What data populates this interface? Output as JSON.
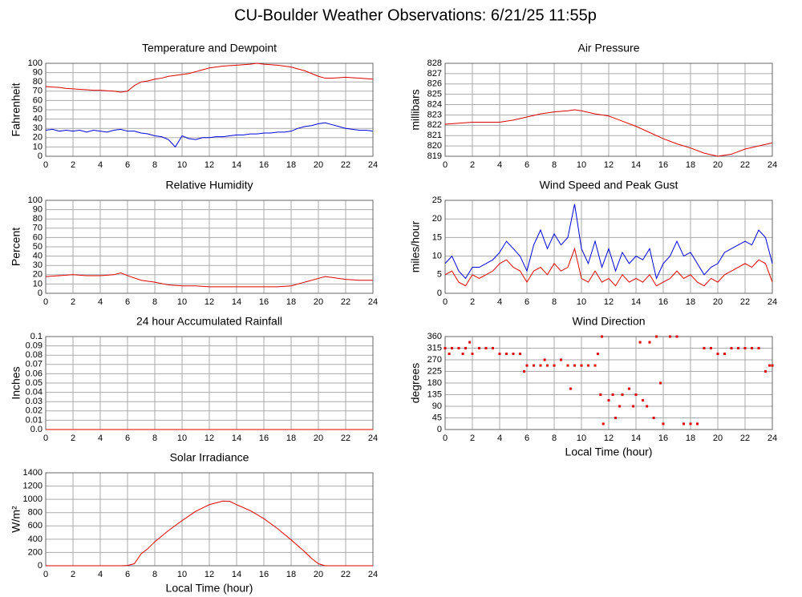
{
  "title": "CU-Boulder Weather Observations: 6/21/25 11:55p",
  "chart_data": [
    {
      "type": "line",
      "title": "Temperature and Dewpoint",
      "ylabel": "Fahrenheit",
      "xlim": [
        0,
        24
      ],
      "ylim": [
        0,
        100
      ],
      "xticks": [
        0,
        2,
        4,
        6,
        8,
        10,
        12,
        14,
        16,
        18,
        20,
        22,
        24
      ],
      "yticks": [
        0,
        10,
        20,
        30,
        40,
        50,
        60,
        70,
        80,
        90,
        100
      ],
      "grid": true,
      "x": [
        0,
        0.5,
        1,
        1.5,
        2,
        2.5,
        3,
        3.5,
        4,
        4.5,
        5,
        5.5,
        6,
        6.5,
        7,
        7.5,
        8,
        8.5,
        9,
        9.5,
        10,
        10.5,
        11,
        11.5,
        12,
        12.5,
        13,
        13.5,
        14,
        14.5,
        15,
        15.5,
        16,
        16.5,
        17,
        17.5,
        18,
        18.5,
        19,
        19.5,
        20,
        20.5,
        21,
        21.5,
        22,
        22.5,
        23,
        23.5,
        24
      ],
      "series": [
        {
          "color": "#e00000",
          "values": [
            75,
            74.5,
            74,
            73,
            72.5,
            72,
            71.5,
            71,
            71,
            70.5,
            70,
            69,
            70,
            76,
            80,
            81,
            83,
            84,
            86,
            87,
            88,
            89,
            91,
            93,
            95,
            96,
            97,
            97.5,
            98,
            98.5,
            99,
            100,
            99,
            98.5,
            98,
            97,
            96,
            94,
            92,
            89,
            86,
            84,
            84,
            84.5,
            85,
            84.5,
            84,
            83.5,
            83
          ]
        },
        {
          "color": "#0000e0",
          "values": [
            28,
            29,
            27,
            28,
            27,
            28,
            26,
            28,
            27,
            26,
            28,
            29,
            27,
            27,
            25,
            24,
            22,
            21,
            18,
            10,
            22,
            19,
            18,
            20,
            20,
            21,
            21,
            22,
            23,
            23,
            24,
            24,
            25,
            25,
            26,
            26,
            27,
            30,
            32,
            33,
            35,
            36,
            34,
            32,
            30,
            29,
            28,
            28,
            27
          ]
        }
      ]
    },
    {
      "type": "line",
      "title": "Air Pressure",
      "ylabel": "millibars",
      "xlim": [
        0,
        24
      ],
      "ylim": [
        819,
        828
      ],
      "xticks": [
        0,
        2,
        4,
        6,
        8,
        10,
        12,
        14,
        16,
        18,
        20,
        22,
        24
      ],
      "yticks": [
        819,
        820,
        821,
        822,
        823,
        824,
        825,
        826,
        827,
        828
      ],
      "grid": true,
      "x": [
        0,
        1,
        2,
        3,
        4,
        5,
        6,
        7,
        8,
        9,
        9.5,
        10,
        11,
        12,
        13,
        14,
        15,
        16,
        17,
        18,
        19,
        20,
        21,
        22,
        23,
        24
      ],
      "series": [
        {
          "color": "#e00000",
          "values": [
            822.1,
            822.2,
            822.3,
            822.3,
            822.3,
            822.5,
            822.8,
            823.1,
            823.3,
            823.4,
            823.5,
            823.4,
            823.1,
            822.9,
            822.4,
            821.9,
            821.3,
            820.7,
            820.2,
            819.8,
            819.3,
            819,
            819.2,
            819.7,
            820,
            820.3
          ]
        }
      ]
    },
    {
      "type": "line",
      "title": "Relative Humidity",
      "ylabel": "Percent",
      "xlim": [
        0,
        24
      ],
      "ylim": [
        0,
        100
      ],
      "xticks": [
        0,
        2,
        4,
        6,
        8,
        10,
        12,
        14,
        16,
        18,
        20,
        22,
        24
      ],
      "yticks": [
        0,
        10,
        20,
        30,
        40,
        50,
        60,
        70,
        80,
        90,
        100
      ],
      "grid": true,
      "x": [
        0,
        1,
        2,
        3,
        4,
        5,
        5.5,
        6,
        7,
        8,
        9,
        10,
        11,
        12,
        13,
        14,
        15,
        16,
        17,
        18,
        19,
        20,
        20.5,
        21,
        22,
        23,
        24
      ],
      "series": [
        {
          "color": "#e00000",
          "values": [
            18,
            19,
            20,
            19,
            19,
            20,
            22,
            19,
            14,
            12,
            9,
            8,
            8,
            7,
            7,
            7,
            7,
            7,
            7,
            8,
            12,
            16,
            18,
            17,
            15,
            14,
            14
          ]
        }
      ]
    },
    {
      "type": "line",
      "title": "Wind Speed and Peak Gust",
      "ylabel": "miles/hour",
      "xlim": [
        0,
        24
      ],
      "ylim": [
        0,
        25
      ],
      "xticks": [
        0,
        2,
        4,
        6,
        8,
        10,
        12,
        14,
        16,
        18,
        20,
        22,
        24
      ],
      "yticks": [
        0,
        5,
        10,
        15,
        20,
        25
      ],
      "grid": true,
      "x": [
        0,
        0.5,
        1,
        1.5,
        2,
        2.5,
        3,
        3.5,
        4,
        4.5,
        5,
        5.5,
        6,
        6.5,
        7,
        7.5,
        8,
        8.5,
        9,
        9.5,
        10,
        10.5,
        11,
        11.5,
        12,
        12.5,
        13,
        13.5,
        14,
        14.5,
        15,
        15.5,
        16,
        16.5,
        17,
        17.5,
        18,
        18.5,
        19,
        19.5,
        20,
        20.5,
        21,
        21.5,
        22,
        22.5,
        23,
        23.5,
        24
      ],
      "series": [
        {
          "color": "#e00000",
          "values": [
            5,
            6,
            3,
            2,
            5,
            4,
            5,
            6,
            8,
            9,
            7,
            6,
            3,
            6,
            7,
            5,
            8,
            6,
            7,
            12,
            4,
            3,
            6,
            3,
            4,
            2,
            5,
            3,
            4,
            3,
            5,
            2,
            3,
            4,
            6,
            4,
            5,
            3,
            2,
            4,
            3,
            5,
            6,
            7,
            8,
            7,
            9,
            8,
            3
          ]
        },
        {
          "color": "#0000e0",
          "values": [
            8,
            10,
            6,
            4,
            7,
            7,
            8,
            9,
            11,
            14,
            12,
            10,
            6,
            13,
            17,
            12,
            16,
            13,
            15,
            24,
            12,
            8,
            14,
            7,
            12,
            6,
            11,
            8,
            10,
            9,
            12,
            4,
            8,
            10,
            14,
            10,
            11,
            8,
            5,
            7,
            8,
            11,
            12,
            13,
            14,
            13,
            17,
            15,
            8
          ]
        }
      ]
    },
    {
      "type": "line",
      "title": "24 hour Accumulated Rainfall",
      "ylabel": "Inches",
      "xlim": [
        0,
        24
      ],
      "ylim": [
        0,
        0.1
      ],
      "xticks": [
        0,
        2,
        4,
        6,
        8,
        10,
        12,
        14,
        16,
        18,
        20,
        22,
        24
      ],
      "yticks": [
        {
          "value": 0,
          "label": "0.0"
        },
        0.01,
        0.02,
        0.03,
        0.04,
        0.05,
        0.06,
        0.07,
        0.08,
        0.09,
        {
          "value": 0.1,
          "label": "0.1"
        }
      ],
      "grid": true,
      "x": [
        0,
        24
      ],
      "series": [
        {
          "color": "#e00000",
          "values": [
            0,
            0
          ]
        }
      ]
    },
    {
      "type": "scatter",
      "title": "Wind Direction",
      "ylabel": "degrees",
      "xlabel": "Local Time (hour)",
      "xlim": [
        0,
        24
      ],
      "ylim": [
        0,
        360
      ],
      "xticks": [
        0,
        2,
        4,
        6,
        8,
        10,
        12,
        14,
        16,
        18,
        20,
        22,
        24
      ],
      "yticks": [
        0,
        45,
        90,
        135,
        180,
        225,
        270,
        315,
        360
      ],
      "grid": true,
      "x": [
        0,
        0.3,
        0.5,
        1,
        1.3,
        1.5,
        1.8,
        2,
        2.5,
        3,
        3.5,
        4,
        4.5,
        5,
        5.5,
        5.8,
        6,
        6.5,
        7,
        7.3,
        7.5,
        8,
        8.5,
        9,
        9.2,
        9.5,
        10,
        10.5,
        11,
        11.2,
        11.5,
        11.4,
        11.6,
        12,
        12.3,
        12.5,
        12.8,
        13,
        13.5,
        13.8,
        14,
        14.3,
        14.5,
        14.8,
        15,
        15.3,
        15.5,
        15.8,
        16,
        16.5,
        17,
        17.5,
        18,
        18.5,
        19,
        19.5,
        20,
        20.5,
        21,
        21.5,
        22,
        22.5,
        23,
        23.5,
        23.8,
        24
      ],
      "series": [
        {
          "color": "#e00000",
          "values": [
            315,
            293,
            315,
            315,
            293,
            315,
            338,
            293,
            315,
            315,
            315,
            293,
            293,
            293,
            293,
            225,
            248,
            248,
            248,
            270,
            248,
            248,
            270,
            248,
            158,
            248,
            248,
            248,
            248,
            293,
            360,
            135,
            22,
            113,
            135,
            45,
            90,
            135,
            158,
            90,
            135,
            338,
            113,
            90,
            338,
            45,
            360,
            180,
            22,
            360,
            360,
            22,
            22,
            22,
            315,
            315,
            293,
            293,
            315,
            315,
            315,
            315,
            315,
            225,
            248,
            248
          ]
        }
      ]
    },
    {
      "type": "line",
      "title": "Solar Irradiance",
      "ylabel": "W/m²",
      "xlabel": "Local Time (hour)",
      "xlim": [
        0,
        24
      ],
      "ylim": [
        0,
        1400
      ],
      "xticks": [
        0,
        2,
        4,
        6,
        8,
        10,
        12,
        14,
        16,
        18,
        20,
        22,
        24
      ],
      "yticks": [
        0,
        200,
        400,
        600,
        800,
        1000,
        1200,
        1400
      ],
      "grid": true,
      "x": [
        0,
        5.5,
        6,
        6.5,
        7,
        7.5,
        8,
        9,
        10,
        11,
        12,
        13,
        13.5,
        14,
        15,
        16,
        17,
        18,
        19,
        19.5,
        20,
        20.5,
        24
      ],
      "series": [
        {
          "color": "#e00000",
          "values": [
            0,
            0,
            5,
            30,
            180,
            260,
            360,
            530,
            680,
            820,
            920,
            975,
            970,
            920,
            830,
            710,
            560,
            390,
            210,
            110,
            30,
            0,
            0
          ]
        }
      ]
    }
  ]
}
